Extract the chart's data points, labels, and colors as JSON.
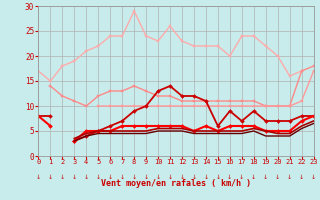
{
  "xlabel": "Vent moyen/en rafales ( km/h )",
  "bg_color": "#c8ecec",
  "grid_color": "#b0b0b0",
  "x_range": [
    0,
    23
  ],
  "y_range": [
    0,
    30
  ],
  "y_ticks": [
    0,
    5,
    10,
    15,
    20,
    25,
    30
  ],
  "x_ticks": [
    0,
    1,
    2,
    3,
    4,
    5,
    6,
    7,
    8,
    9,
    10,
    11,
    12,
    13,
    14,
    15,
    16,
    17,
    18,
    19,
    20,
    21,
    22,
    23
  ],
  "series": [
    {
      "comment": "lightest pink - top curve with peak ~29 at x=8",
      "color": "#ffaaaa",
      "lw": 1.0,
      "marker": "s",
      "ms": 2.0,
      "y": [
        17,
        15,
        18,
        19,
        21,
        22,
        24,
        24,
        29,
        24,
        23,
        26,
        23,
        22,
        22,
        22,
        20,
        24,
        24,
        22,
        20,
        16,
        17,
        null
      ]
    },
    {
      "comment": "medium pink - middle upper curve ~14-17",
      "color": "#ff8888",
      "lw": 1.0,
      "marker": "s",
      "ms": 2.0,
      "y": [
        null,
        14,
        12,
        11,
        10,
        12,
        13,
        13,
        14,
        13,
        12,
        12,
        11,
        11,
        11,
        11,
        11,
        11,
        11,
        10,
        10,
        10,
        17,
        18
      ]
    },
    {
      "comment": "salmon/light red - flat ~10-11 line then rises to 17 at end",
      "color": "#ff9999",
      "lw": 1.0,
      "marker": "s",
      "ms": 2.0,
      "y": [
        null,
        null,
        null,
        null,
        null,
        10,
        10,
        10,
        10,
        10,
        10,
        10,
        10,
        10,
        10,
        10,
        10,
        10,
        10,
        10,
        10,
        10,
        11,
        17
      ]
    },
    {
      "comment": "red with diamonds - rises from ~8 to 14, then oscillates",
      "color": "#cc0000",
      "lw": 1.3,
      "marker": "D",
      "ms": 2.0,
      "y": [
        8,
        8,
        null,
        3,
        4,
        5,
        6,
        7,
        9,
        10,
        13,
        14,
        12,
        12,
        11,
        6,
        9,
        7,
        9,
        7,
        7,
        7,
        8,
        8
      ]
    },
    {
      "comment": "bright red with diamonds - low flat ~5-8",
      "color": "#ff0000",
      "lw": 1.5,
      "marker": "D",
      "ms": 2.0,
      "y": [
        8,
        6,
        null,
        3,
        5,
        5,
        5,
        6,
        6,
        6,
        6,
        6,
        6,
        5,
        6,
        5,
        6,
        6,
        6,
        5,
        5,
        5,
        7,
        8
      ]
    },
    {
      "comment": "dark red solid - gradually rising from ~4 to 7",
      "color": "#aa0000",
      "lw": 1.2,
      "marker": null,
      "ms": 0,
      "y": [
        null,
        null,
        null,
        3.5,
        4.5,
        5,
        5,
        5,
        5,
        5,
        5.5,
        5.5,
        5.5,
        5,
        5,
        5,
        5,
        5,
        5.5,
        5,
        4.5,
        4.5,
        6,
        7
      ]
    },
    {
      "comment": "very dark red - lowest line",
      "color": "#660000",
      "lw": 1.0,
      "marker": null,
      "ms": 0,
      "y": [
        null,
        null,
        null,
        3,
        4,
        4.5,
        4.5,
        4.5,
        4.5,
        4.5,
        5,
        5,
        5,
        4.5,
        4.5,
        4.5,
        4.5,
        4.5,
        5,
        4,
        4,
        4,
        5.5,
        6.5
      ]
    }
  ]
}
